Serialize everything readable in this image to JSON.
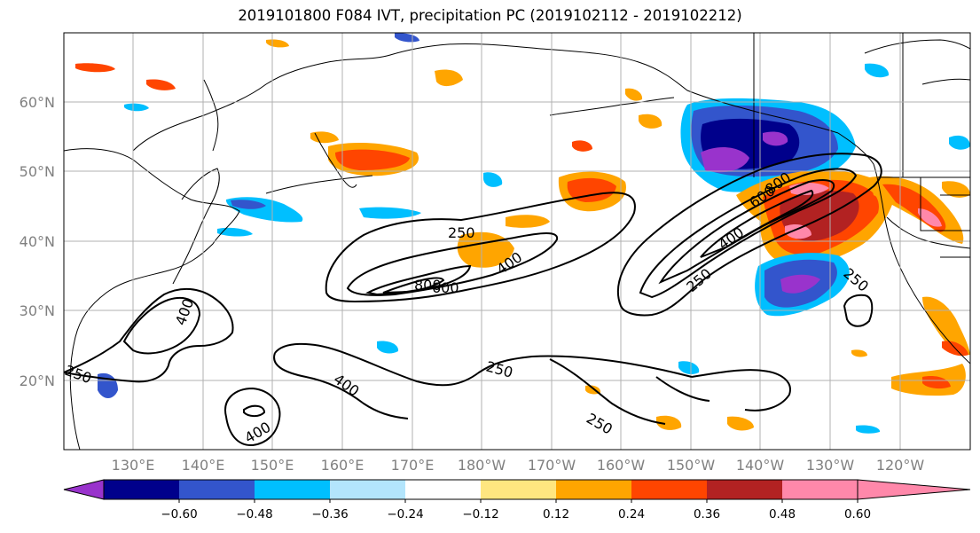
{
  "title": "2019101800 F084 IVT, precipitation PC (2019102112 - 2019102212)",
  "lat_labels": [
    "60°N",
    "50°N",
    "40°N",
    "30°N",
    "20°N"
  ],
  "lon_labels": [
    "130°E",
    "140°E",
    "150°E",
    "160°E",
    "170°E",
    "180°W",
    "170°W",
    "160°W",
    "150°W",
    "140°W",
    "130°W",
    "120°W"
  ],
  "colorbar": {
    "colors": [
      "#9933cc",
      "#00008b",
      "#3355cc",
      "#00bfff",
      "#b3e5fc",
      "#ffffff",
      "#ffe680",
      "#ffa500",
      "#ff4500",
      "#b22222",
      "#ff88aa"
    ],
    "tick_labels": [
      "−0.60",
      "−0.48",
      "−0.36",
      "−0.24",
      "−0.12",
      "0.12",
      "0.24",
      "0.36",
      "0.48",
      "0.60"
    ]
  },
  "ivt_contour_labels": [
    "250",
    "400",
    "600",
    "800",
    "250",
    "400",
    "600",
    "800",
    "400",
    "250",
    "250",
    "400",
    "400",
    "250",
    "250",
    "250"
  ]
}
